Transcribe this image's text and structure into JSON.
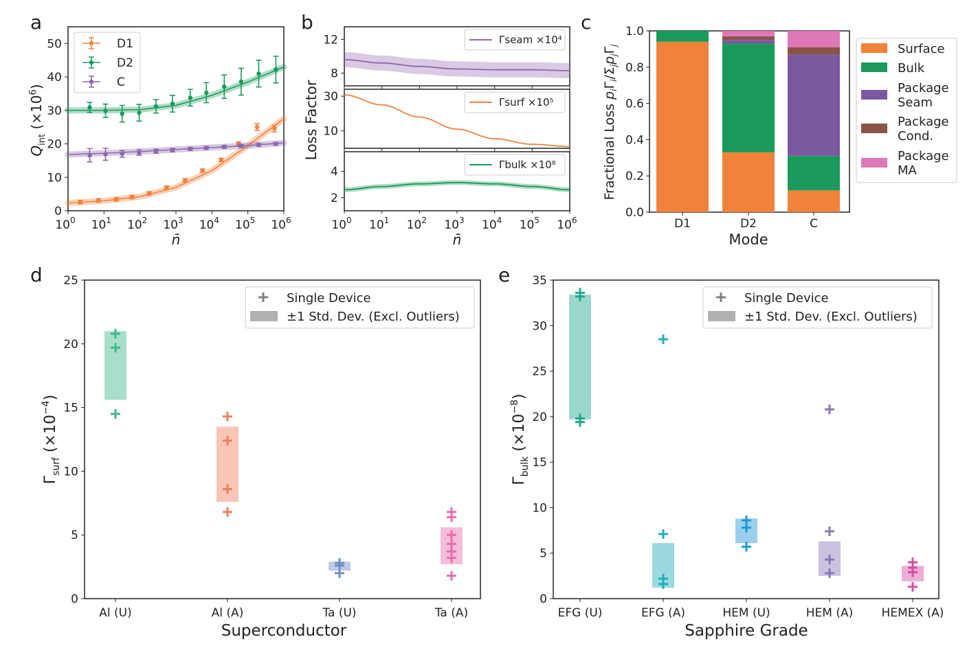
{
  "colors": {
    "D1": "#f0823a",
    "D2": "#1a9a5a",
    "C": "#8c67ad",
    "surface": "#f0823a",
    "bulk": "#1a9a5a",
    "seam": "#7b59a0",
    "cond": "#8a5347",
    "ma": "#de78b6",
    "al_u": "#40b88a",
    "al_a": "#f07e5e",
    "ta_u": "#6d8ccc",
    "ta_a": "#e66cad",
    "efg_u": "#1ea98c",
    "efg_a": "#20aeb8",
    "hem_u": "#1f95d8",
    "hem_a": "#8a78b8",
    "hemex_a": "#d54ea4",
    "legend_marker": "#808080",
    "legend_band": "#b0b0b0"
  },
  "chart_data": [
    {
      "panel": "a",
      "type": "line",
      "xscale": "log",
      "xlim": [
        1,
        1000000
      ],
      "ylim": [
        0,
        55
      ],
      "xlabel": "n̄",
      "ylabel": "Q_int (×10⁶)",
      "y_ticks": [
        "0",
        "10",
        "20",
        "30",
        "40",
        "50"
      ],
      "x_ticks": [
        "0",
        "1",
        "2",
        "3",
        "4",
        "5",
        "6"
      ],
      "legend": [
        "D1",
        "D2",
        "C"
      ],
      "legend_position": "top-left",
      "series": [
        {
          "name": "D1",
          "x": [
            2.2,
            7,
            22,
            60,
            180,
            550,
            1800,
            5500,
            18000,
            55000,
            180000,
            550000
          ],
          "y": [
            2.6,
            3.1,
            3.4,
            4.1,
            5.2,
            6.9,
            9.1,
            12,
            15.2,
            20,
            25,
            24.6
          ],
          "err": [
            0.5,
            0.5,
            0.5,
            0.5,
            0.5,
            0.5,
            0.5,
            0.5,
            0.5,
            0.6,
            1,
            1
          ],
          "fit_x": [
            1,
            10,
            100,
            1000,
            10000,
            100000,
            1000000
          ],
          "fit_y": [
            2.3,
            3.0,
            4.2,
            7.0,
            12.0,
            19.5,
            27.5
          ]
        },
        {
          "name": "D2",
          "x": [
            4,
            11,
            32,
            95,
            280,
            800,
            2500,
            7000,
            22000,
            65000,
            200000,
            600000
          ],
          "y": [
            30.9,
            29.9,
            29,
            29.3,
            31.2,
            32,
            33.8,
            35.3,
            37.1,
            38.6,
            41,
            42.2
          ],
          "err": [
            1.5,
            2,
            2.5,
            2.5,
            2,
            2.5,
            2.5,
            3,
            3.5,
            4,
            4,
            4
          ],
          "fit_x": [
            1,
            10,
            100,
            1000,
            10000,
            100000,
            1000000
          ],
          "fit_y": [
            30,
            30,
            30.2,
            31.5,
            34.5,
            38.5,
            43
          ]
        },
        {
          "name": "C",
          "x": [
            4,
            11,
            32,
            95,
            280,
            800,
            2500,
            7000,
            22000,
            65000,
            200000,
            600000
          ],
          "y": [
            16.6,
            16.9,
            17,
            17.4,
            17.8,
            18.1,
            18.5,
            18.8,
            19.1,
            19.4,
            19.7,
            20
          ],
          "err": [
            2,
            1.8,
            1,
            0.8,
            0.6,
            0.5,
            0.4,
            0.4,
            0.4,
            0.4,
            0.4,
            0.4
          ],
          "fit_x": [
            1,
            10,
            100,
            1000,
            10000,
            100000,
            1000000
          ],
          "fit_y": [
            16.8,
            17.2,
            17.7,
            18.3,
            18.9,
            19.5,
            20.3
          ]
        }
      ]
    },
    {
      "panel": "b",
      "type": "line",
      "xscale": "log",
      "xlim": [
        1,
        1000000
      ],
      "xlabel": "n̄",
      "ylabel": "Loss Factor",
      "x_ticks": [
        "0",
        "1",
        "2",
        "3",
        "4",
        "5",
        "6"
      ],
      "subplots": [
        {
          "name": "Γseam ×10⁴",
          "ylim": [
            6.5,
            13.5
          ],
          "y_ticks": [
            "8",
            "12"
          ],
          "y_tick_values": [
            8,
            12
          ],
          "x": [
            1,
            10,
            100,
            1000,
            10000,
            100000,
            1000000
          ],
          "y": [
            9.6,
            9.2,
            8.8,
            8.5,
            8.4,
            8.4,
            8.3
          ],
          "band": 0.9,
          "legend_position": "top-right"
        },
        {
          "name": "Γsurf ×10⁵",
          "ylim": [
            0,
            34
          ],
          "y_ticks": [
            "10",
            "30"
          ],
          "y_tick_values": [
            10,
            30
          ],
          "x": [
            1,
            10,
            100,
            1000,
            10000,
            100000,
            1000000
          ],
          "y": [
            30.8,
            25,
            18,
            11,
            5.5,
            2.3,
            1.0
          ],
          "band": 0.3,
          "legend_position": "top-right"
        },
        {
          "name": "Γbulk ×10⁸",
          "ylim": [
            1,
            5.5
          ],
          "y_ticks": [
            "2",
            "4"
          ],
          "y_tick_values": [
            2,
            4
          ],
          "x": [
            1,
            10,
            100,
            1000,
            10000,
            100000,
            1000000
          ],
          "y": [
            2.6,
            2.85,
            3.05,
            3.15,
            3.05,
            2.85,
            2.6
          ],
          "band": 0.18,
          "legend_position": "top-right"
        }
      ]
    },
    {
      "panel": "c",
      "type": "bar",
      "stacked": true,
      "categories": [
        "D1",
        "D2",
        "C"
      ],
      "xlabel": "Mode",
      "ylabel": "Fractional Loss p_iΓ_i/Σ_j p_jΓ_j",
      "ylim": [
        0,
        1
      ],
      "y_ticks": [
        "0.0",
        "0.2",
        "0.4",
        "0.6",
        "0.8",
        "1.0"
      ],
      "legend_position": "right",
      "series": [
        {
          "name": "Surface",
          "color_key": "surface",
          "values": [
            0.94,
            0.33,
            0.12
          ]
        },
        {
          "name": "Bulk",
          "color_key": "bulk",
          "values": [
            0.06,
            0.6,
            0.19
          ]
        },
        {
          "name": "Package Seam",
          "color_key": "seam",
          "values": [
            0,
            0.02,
            0.56
          ]
        },
        {
          "name": "Package Cond.",
          "color_key": "cond",
          "values": [
            0,
            0.02,
            0.04
          ]
        },
        {
          "name": "Package MA",
          "color_key": "ma",
          "values": [
            0,
            0.03,
            0.09
          ]
        }
      ]
    },
    {
      "panel": "d",
      "type": "scatter",
      "xlabel": "Superconductor",
      "ylabel": "Γsurf (×10⁻⁴)",
      "ylim": [
        0,
        25
      ],
      "y_ticks": [
        "0",
        "5",
        "10",
        "15",
        "20",
        "25"
      ],
      "legend": [
        "Single Device",
        "±1 Std. Dev. (Excl. Outliers)"
      ],
      "legend_position": "top-right",
      "groups": [
        {
          "name": "Al (U)",
          "color_key": "al_u",
          "points": [
            20.8,
            19.7,
            14.5
          ],
          "band": [
            15.6,
            21.0
          ]
        },
        {
          "name": "Al (A)",
          "color_key": "al_a",
          "points": [
            14.3,
            12.4,
            8.6,
            6.8
          ],
          "band": [
            7.6,
            13.5
          ]
        },
        {
          "name": "Ta (U)",
          "color_key": "ta_u",
          "points": [
            2.8,
            2.6,
            2.0
          ],
          "band": [
            2.2,
            2.9
          ]
        },
        {
          "name": "Ta (A)",
          "color_key": "ta_a",
          "points": [
            6.8,
            6.4,
            5.0,
            4.3,
            3.7,
            3.2,
            1.8
          ],
          "band": [
            2.7,
            5.6
          ]
        }
      ]
    },
    {
      "panel": "e",
      "type": "scatter",
      "xlabel": "Sapphire Grade",
      "ylabel": "Γbulk (×10⁻⁸)",
      "ylim": [
        0,
        35
      ],
      "y_ticks": [
        "0",
        "5",
        "10",
        "15",
        "20",
        "25",
        "30",
        "35"
      ],
      "legend": [
        "Single Device",
        "±1 Std. Dev. (Excl. Outliers)"
      ],
      "legend_position": "top-right",
      "groups": [
        {
          "name": "EFG (U)",
          "color_key": "efg_u",
          "points": [
            33.6,
            33.2,
            19.8,
            19.4
          ],
          "band": [
            19.7,
            33.4
          ]
        },
        {
          "name": "EFG (A)",
          "color_key": "efg_a",
          "points": [
            28.5,
            7.1,
            2.2,
            1.6
          ],
          "band": [
            1.2,
            6.1
          ]
        },
        {
          "name": "HEM (U)",
          "color_key": "hem_u",
          "points": [
            8.6,
            7.8,
            5.7
          ],
          "band": [
            6.1,
            8.8
          ]
        },
        {
          "name": "HEM (A)",
          "color_key": "hem_a",
          "points": [
            20.8,
            7.4,
            4.3,
            2.8
          ],
          "band": [
            2.5,
            6.3
          ]
        },
        {
          "name": "HEMEX (A)",
          "color_key": "hemex_a",
          "points": [
            4.0,
            3.4,
            2.9,
            1.3
          ],
          "band": [
            1.9,
            3.6
          ]
        }
      ]
    }
  ],
  "labels": {
    "panel_a": "a",
    "panel_b": "b",
    "panel_c": "c",
    "panel_d": "d",
    "panel_e": "e",
    "a_xlabel": "n̄",
    "b_xlabel": "n̄",
    "b_ylabel": "Loss Factor",
    "c_xlabel": "Mode",
    "d_xlabel": "Superconductor",
    "e_xlabel": "Sapphire Grade",
    "legend_single": "Single Device",
    "legend_band": "±1 Std. Dev. (Excl. Outliers)"
  }
}
